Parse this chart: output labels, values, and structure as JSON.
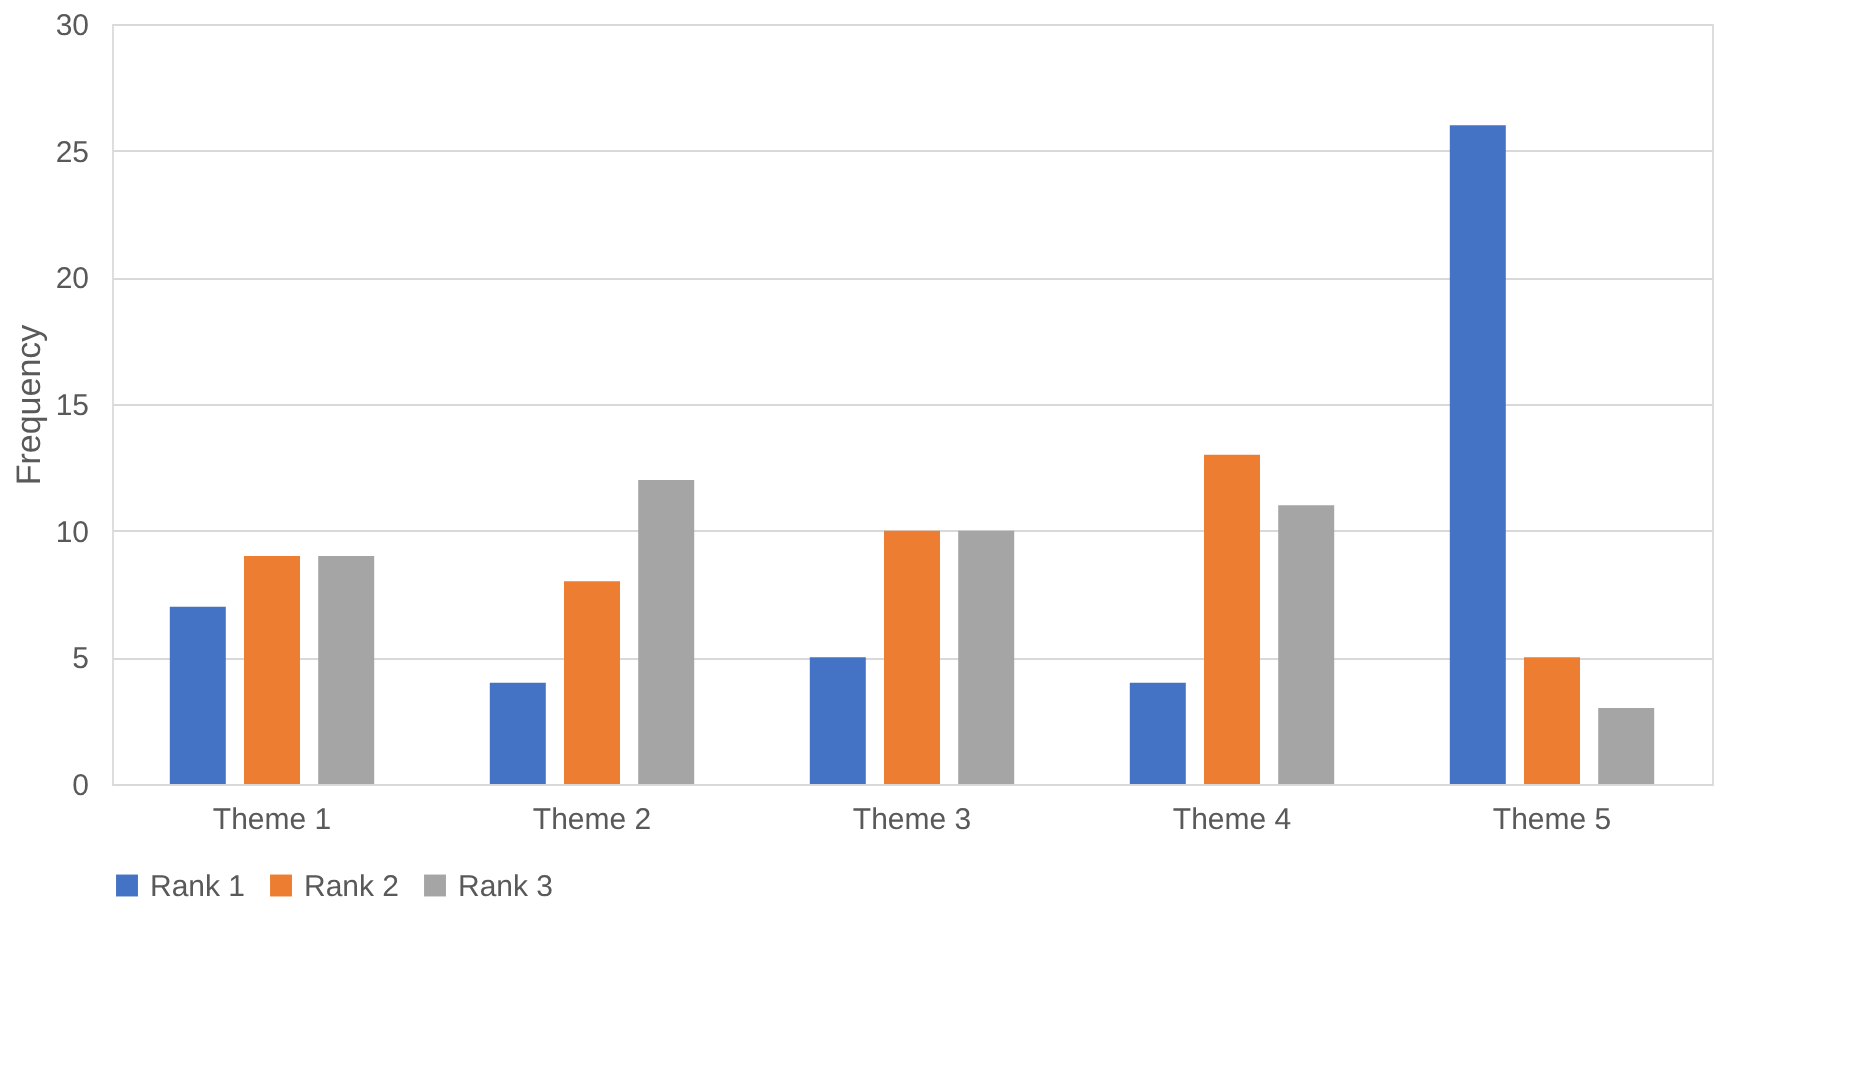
{
  "chart_data": {
    "type": "bar",
    "ylabel": "Frequency",
    "categories": [
      "Theme 1",
      "Theme 2",
      "Theme 3",
      "Theme 4",
      "Theme 5"
    ],
    "series": [
      {
        "name": "Rank 1",
        "color": "#4472c4",
        "values": [
          7,
          4,
          5,
          4,
          26
        ]
      },
      {
        "name": "Rank 2",
        "color": "#ed7d31",
        "values": [
          9,
          8,
          10,
          13,
          5
        ]
      },
      {
        "name": "Rank 3",
        "color": "#a5a5a5",
        "values": [
          9,
          12,
          10,
          11,
          3
        ]
      }
    ],
    "ylim": [
      0,
      30
    ],
    "yticks": [
      0,
      5,
      10,
      15,
      20,
      25,
      30
    ],
    "grid": "y",
    "legend": "bottom"
  }
}
